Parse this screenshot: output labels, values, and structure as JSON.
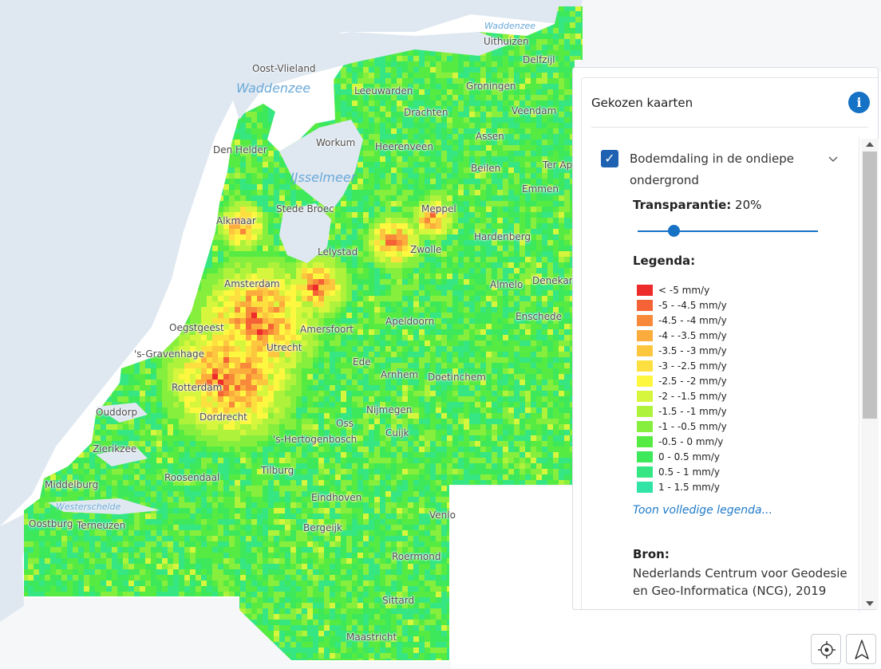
{
  "map": {
    "labels": [
      {
        "name": "Waddenzee",
        "kind": "water-small"
      },
      {
        "name": "Uithuizen"
      },
      {
        "name": "Delfzijl"
      },
      {
        "name": "Oost-Vlieland"
      },
      {
        "name": "Waddenzee",
        "kind": "water"
      },
      {
        "name": "Leeuwarden"
      },
      {
        "name": "Groningen"
      },
      {
        "name": "Drachten"
      },
      {
        "name": "Veendam"
      },
      {
        "name": "Assen"
      },
      {
        "name": "Workum"
      },
      {
        "name": "Heerenveen"
      },
      {
        "name": "Den Helder"
      },
      {
        "name": "Beilen"
      },
      {
        "name": "Ter Ap"
      },
      {
        "name": "IJsselmeer",
        "kind": "water"
      },
      {
        "name": "Emmen"
      },
      {
        "name": "Stede Broec"
      },
      {
        "name": "Meppel"
      },
      {
        "name": "Alkmaar"
      },
      {
        "name": "Hardenberg"
      },
      {
        "name": "Lelystad"
      },
      {
        "name": "Zwolle"
      },
      {
        "name": "Denekam"
      },
      {
        "name": "Amsterdam"
      },
      {
        "name": "Almelo"
      },
      {
        "name": "Oegstgeest"
      },
      {
        "name": "Amersfoort"
      },
      {
        "name": "Apeldoorn"
      },
      {
        "name": "Enschede"
      },
      {
        "name": "'s-Gravenhage"
      },
      {
        "name": "Utrecht"
      },
      {
        "name": "Ede"
      },
      {
        "name": "Arnhem"
      },
      {
        "name": "Doetinchem"
      },
      {
        "name": "Rotterdam"
      },
      {
        "name": "Ouddorp"
      },
      {
        "name": "Dordrecht"
      },
      {
        "name": "Nijmegen"
      },
      {
        "name": "Oss"
      },
      {
        "name": "Cuijk"
      },
      {
        "name": "'s-Hertogenbosch"
      },
      {
        "name": "Zierikzee"
      },
      {
        "name": "Tilburg"
      },
      {
        "name": "Roosendaal"
      },
      {
        "name": "Middelburg"
      },
      {
        "name": "Eindhoven"
      },
      {
        "name": "Westerschelde",
        "kind": "water-small"
      },
      {
        "name": "Venlo"
      },
      {
        "name": "Oostburg"
      },
      {
        "name": "Terneuzen"
      },
      {
        "name": "Bergeijk"
      },
      {
        "name": "Roermond"
      },
      {
        "name": "Sittard"
      },
      {
        "name": "Maastricht"
      }
    ]
  },
  "panel": {
    "title": "Gekozen kaarten",
    "info_icon": "info-icon",
    "layer": {
      "name": "Bodemdaling in de ondiepe ondergrond",
      "checked": true,
      "transparency_label": "Transparantie:",
      "transparency_value": "20%",
      "transparency_fraction": 0.2,
      "legend_title": "Legenda:",
      "legend": [
        {
          "label": "< -5 mm/y",
          "color": "#ee2b2b"
        },
        {
          "label": "-5 - -4.5 mm/y",
          "color": "#f46236"
        },
        {
          "label": "-4.5 - -4 mm/y",
          "color": "#f8893a"
        },
        {
          "label": "-4 - -3.5 mm/y",
          "color": "#fbac3d"
        },
        {
          "label": "-3.5 - -3 mm/y",
          "color": "#fcc63f"
        },
        {
          "label": "-3 - -2.5 mm/y",
          "color": "#fde040"
        },
        {
          "label": "-2.5 - -2 mm/y",
          "color": "#fdf83f"
        },
        {
          "label": "-2 - -1.5 mm/y",
          "color": "#d6f53d"
        },
        {
          "label": "-1.5 - -1 mm/y",
          "color": "#aef23c"
        },
        {
          "label": "-1 - -0.5 mm/y",
          "color": "#86ef3d"
        },
        {
          "label": "-0.5 - 0 mm/y",
          "color": "#56eb42"
        },
        {
          "label": "0 - 0.5 mm/y",
          "color": "#3ee85b"
        },
        {
          "label": "0.5 - 1 mm/y",
          "color": "#35e683"
        },
        {
          "label": "1 - 1.5 mm/y",
          "color": "#31e4a6"
        }
      ],
      "legend_link": "Toon volledige legenda...",
      "source_title": "Bron:",
      "source_text": "Nederlands Centrum voor Geodesie en Geo-Informatica (NCG), 2019"
    }
  },
  "controls": {
    "locate_icon": "locate-icon",
    "north_icon": "north-arrow-icon"
  }
}
